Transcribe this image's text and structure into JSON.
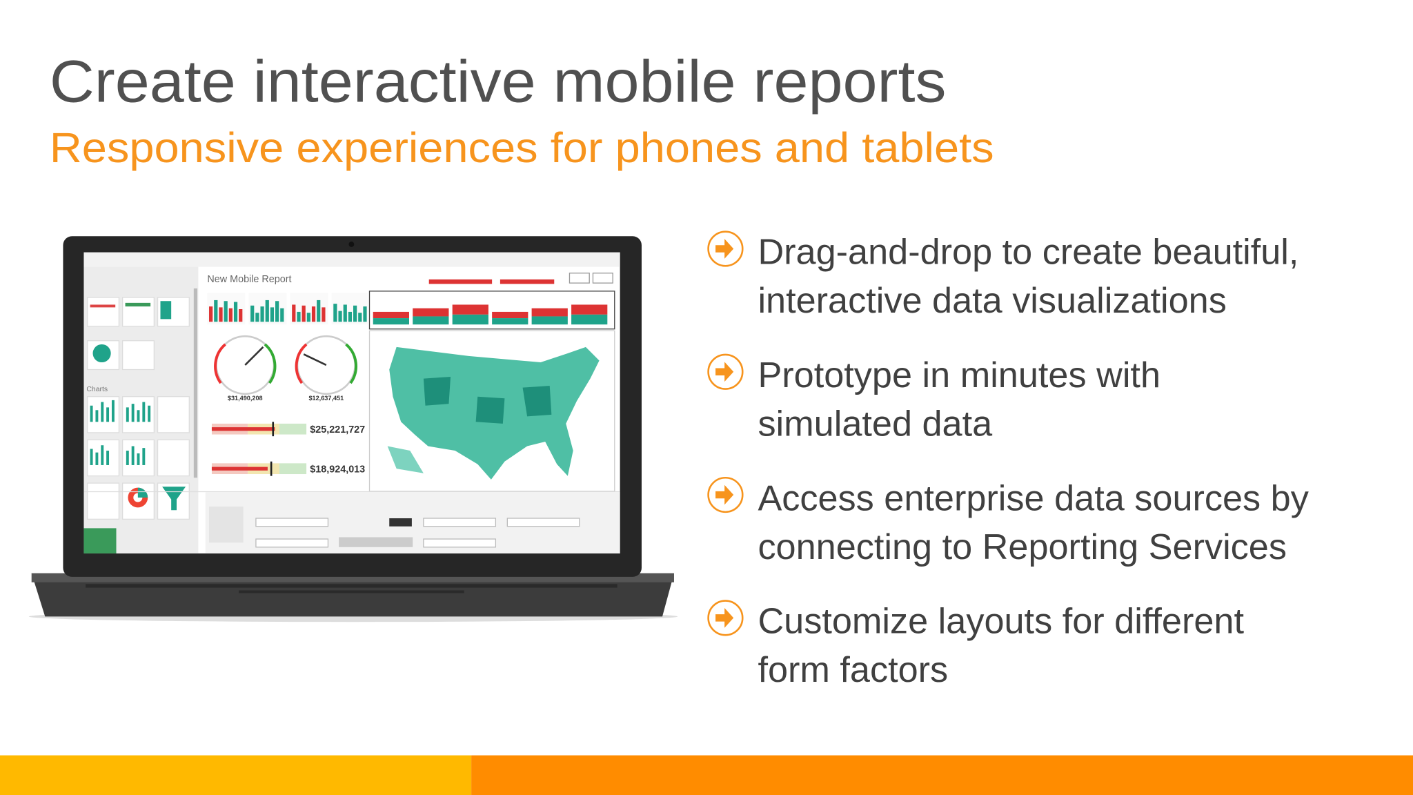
{
  "header": {
    "title": "Create interactive mobile reports",
    "subtitle": "Responsive experiences for phones and tablets"
  },
  "bullets": [
    {
      "lines": [
        "Drag-and-drop to create beautiful,",
        "interactive data visualizations"
      ]
    },
    {
      "lines": [
        "Prototype in minutes with",
        "simulated data"
      ]
    },
    {
      "lines": [
        "Access enterprise data sources by",
        "connecting to Reporting Services"
      ]
    },
    {
      "lines": [
        "Customize layouts for different",
        "form factors"
      ]
    }
  ],
  "screen": {
    "report_title": "New Mobile Report",
    "panel_heading": "Charts",
    "gauge_values": [
      "$31,490,208",
      "$12,637,451"
    ],
    "bullet_values": [
      "$25,221,727",
      "$18,924,013"
    ]
  }
}
